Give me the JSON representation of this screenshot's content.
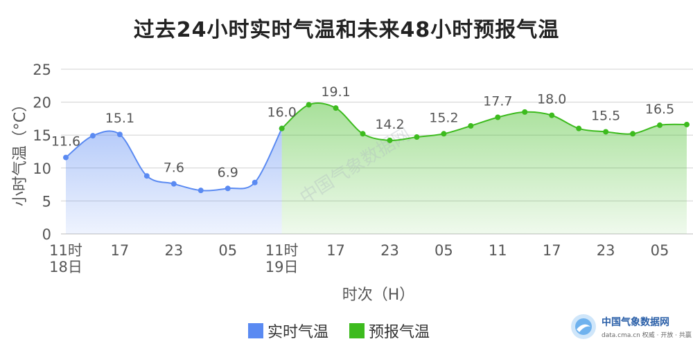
{
  "chart_data": {
    "type": "area",
    "title": "过去24小时实时气温和未来48小时预报气温",
    "xlabel": "时次（H）",
    "ylabel": "小时气温（°C）",
    "ylim": [
      0,
      25
    ],
    "yticks": [
      "0",
      "5",
      "10",
      "15",
      "20",
      "25"
    ],
    "grid": true,
    "legend_position": "bottom",
    "x_tick_labels": [
      {
        "hour": 0,
        "label": "11时",
        "sublabel": "18日"
      },
      {
        "hour": 6,
        "label": "17"
      },
      {
        "hour": 12,
        "label": "23"
      },
      {
        "hour": 18,
        "label": "05"
      },
      {
        "hour": 24,
        "label": "11时",
        "sublabel": "19日"
      },
      {
        "hour": 30,
        "label": "17"
      },
      {
        "hour": 36,
        "label": "23"
      },
      {
        "hour": 42,
        "label": "05"
      },
      {
        "hour": 48,
        "label": "11"
      },
      {
        "hour": 54,
        "label": "17"
      },
      {
        "hour": 60,
        "label": "23"
      },
      {
        "hour": 66,
        "label": "05"
      }
    ],
    "x_range": [
      0,
      70
    ],
    "series": [
      {
        "name": "实时气温",
        "color": "#5a8af2",
        "points": [
          {
            "x": 0,
            "y": 11.6,
            "label": "11.6"
          },
          {
            "x": 3,
            "y": 14.9
          },
          {
            "x": 6,
            "y": 15.1,
            "label": "15.1"
          },
          {
            "x": 9,
            "y": 8.8
          },
          {
            "x": 12,
            "y": 7.6,
            "label": "7.6"
          },
          {
            "x": 15,
            "y": 6.6
          },
          {
            "x": 18,
            "y": 6.9,
            "label": "6.9"
          },
          {
            "x": 21,
            "y": 7.8
          },
          {
            "x": 24,
            "y": 16.0,
            "label": "16.0"
          }
        ]
      },
      {
        "name": "预报气温",
        "color": "#3dbb1e",
        "points": [
          {
            "x": 24,
            "y": 16.0
          },
          {
            "x": 27,
            "y": 19.6
          },
          {
            "x": 30,
            "y": 19.1,
            "label": "19.1"
          },
          {
            "x": 33,
            "y": 15.2
          },
          {
            "x": 36,
            "y": 14.2,
            "label": "14.2"
          },
          {
            "x": 39,
            "y": 14.7
          },
          {
            "x": 42,
            "y": 15.2,
            "label": "15.2"
          },
          {
            "x": 45,
            "y": 16.4
          },
          {
            "x": 48,
            "y": 17.7,
            "label": "17.7"
          },
          {
            "x": 51,
            "y": 18.5
          },
          {
            "x": 54,
            "y": 18.0,
            "label": "18.0"
          },
          {
            "x": 57,
            "y": 16.0
          },
          {
            "x": 60,
            "y": 15.5,
            "label": "15.5"
          },
          {
            "x": 63,
            "y": 15.2
          },
          {
            "x": 66,
            "y": 16.5,
            "label": "16.5"
          },
          {
            "x": 69,
            "y": 16.6
          }
        ]
      }
    ]
  },
  "legend": {
    "observed_label": "实时气温",
    "forecast_label": "预报气温",
    "observed_color": "#5a8af2",
    "forecast_color": "#3dbb1e"
  },
  "brand": {
    "name": "中国气象数据网",
    "sub": "data.cma.cn 权威 · 开放 · 共赢",
    "watermark": "中国气象数据网",
    "logo_icon": "cma-data-logo-icon"
  }
}
